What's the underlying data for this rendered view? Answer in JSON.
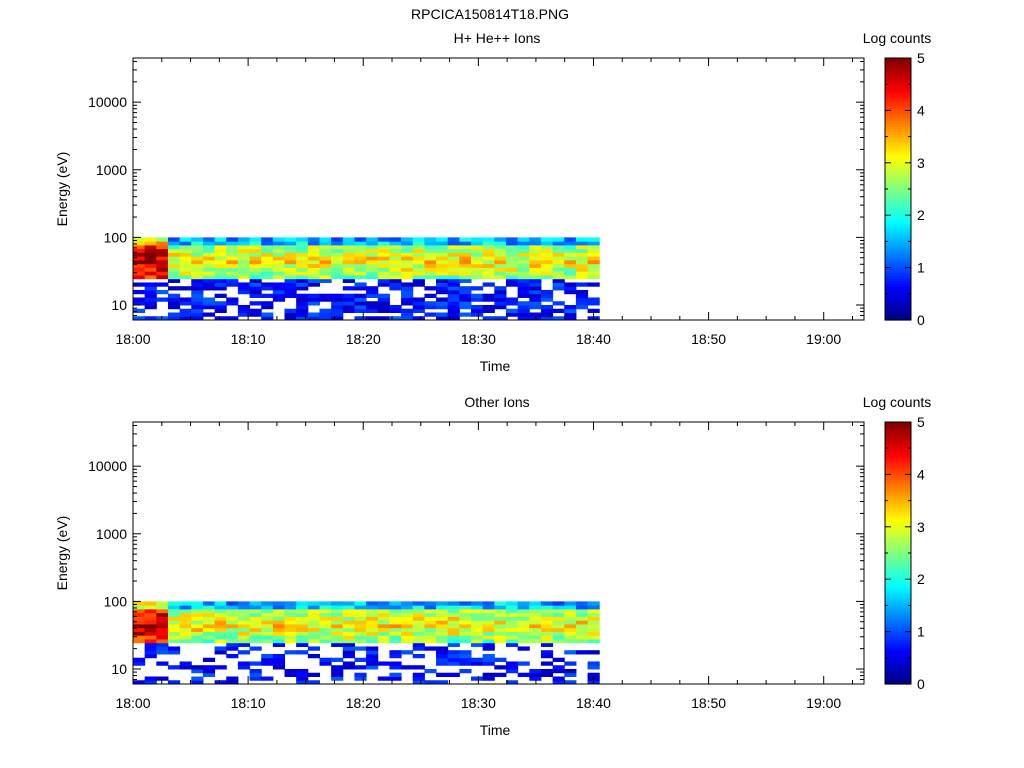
{
  "figure": {
    "title": "RPCICA150814T18.PNG"
  },
  "colors": {
    "colormap": [
      "#00007f",
      "#0000ff",
      "#007fff",
      "#00ffff",
      "#7fff7f",
      "#ffff00",
      "#ff7f00",
      "#ff0000",
      "#7f0000"
    ],
    "axis": "#000000",
    "background": "#ffffff"
  },
  "chart_data": [
    {
      "type": "heatmap",
      "title": "H+ He++ Ions",
      "xlabel": "Time",
      "ylabel": "Energy (eV)",
      "x_ticks": [
        "18:00",
        "18:10",
        "18:20",
        "18:30",
        "18:40",
        "18:50",
        "19:00"
      ],
      "y_ticks": [
        "10",
        "100",
        "1000",
        "10000"
      ],
      "y_scale": "log",
      "ylim": [
        6,
        45000
      ],
      "xlim_minutes": [
        0,
        63.5
      ],
      "data_extent_minutes": [
        0,
        40.5
      ],
      "energy_range_ev": [
        6,
        100
      ],
      "colorbar": {
        "label": "Log counts",
        "ticks": [
          "0",
          "1",
          "2",
          "3",
          "4",
          "5"
        ],
        "range": [
          0,
          5
        ]
      }
    },
    {
      "type": "heatmap",
      "title": "Other Ions",
      "xlabel": "Time",
      "ylabel": "Energy (eV)",
      "x_ticks": [
        "18:00",
        "18:10",
        "18:20",
        "18:30",
        "18:40",
        "18:50",
        "19:00"
      ],
      "y_ticks": [
        "10",
        "100",
        "1000",
        "10000"
      ],
      "y_scale": "log",
      "ylim": [
        6,
        45000
      ],
      "xlim_minutes": [
        0,
        63.5
      ],
      "data_extent_minutes": [
        0,
        40.5
      ],
      "energy_range_ev": [
        6,
        100
      ],
      "colorbar": {
        "label": "Log counts",
        "ticks": [
          "0",
          "1",
          "2",
          "3",
          "4",
          "5"
        ],
        "range": [
          0,
          5
        ]
      }
    }
  ]
}
